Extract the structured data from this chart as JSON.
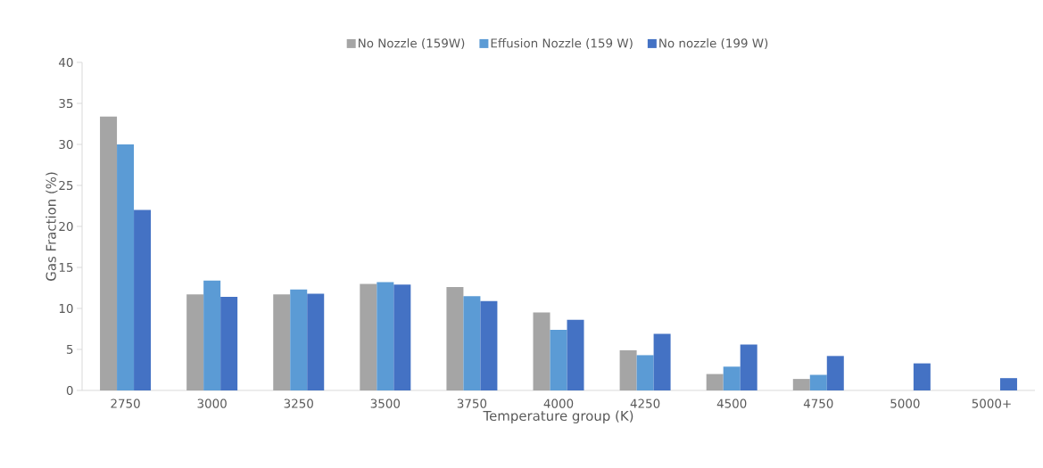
{
  "chart_data": {
    "type": "bar",
    "xlabel": "Temperature group (K)",
    "ylabel": "Gas Fraction (%)",
    "categories": [
      "2750",
      "3000",
      "3250",
      "3500",
      "3750",
      "4000",
      "4250",
      "4500",
      "4750",
      "5000",
      "5000+"
    ],
    "series": [
      {
        "name": "No Nozzle (159W)",
        "color": "#a5a5a5",
        "values": [
          33.4,
          11.7,
          11.7,
          13.0,
          12.6,
          9.5,
          4.9,
          2.0,
          1.4,
          null,
          null
        ]
      },
      {
        "name": "Effusion Nozzle (159 W)",
        "color": "#5b9bd5",
        "values": [
          30.0,
          13.4,
          12.3,
          13.2,
          11.5,
          7.4,
          4.3,
          2.9,
          1.9,
          null,
          null
        ]
      },
      {
        "name": "No nozzle (199 W)",
        "color": "#4472c4",
        "values": [
          22.0,
          11.4,
          11.8,
          12.9,
          10.9,
          8.6,
          6.9,
          5.6,
          4.2,
          3.3,
          1.5
        ]
      }
    ],
    "ylim": [
      0,
      40
    ],
    "yticks": [
      0,
      5,
      10,
      15,
      20,
      25,
      30,
      35,
      40
    ],
    "grid": false,
    "legend": "top"
  }
}
